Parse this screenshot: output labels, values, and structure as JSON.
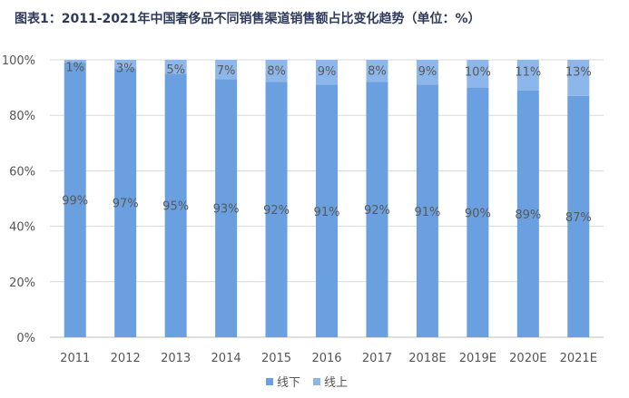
{
  "chart_data": {
    "type": "bar",
    "stacked": true,
    "title": "图表1：2011-2021年中国奢侈品不同销售渠道销售额占比变化趋势（单位：%）",
    "categories": [
      "2011",
      "2012",
      "2013",
      "2014",
      "2015",
      "2016",
      "2017",
      "2018E",
      "2019E",
      "2020E",
      "2021E"
    ],
    "series": [
      {
        "name": "线下",
        "values": [
          99,
          97,
          95,
          93,
          92,
          91,
          92,
          91,
          90,
          89,
          87
        ],
        "color": "#6a9fe0",
        "labels": [
          "99%",
          "97%",
          "95%",
          "93%",
          "92%",
          "91%",
          "92%",
          "91%",
          "90%",
          "89%",
          "87%"
        ]
      },
      {
        "name": "线上",
        "values": [
          1,
          3,
          5,
          7,
          8,
          9,
          8,
          9,
          10,
          11,
          13
        ],
        "color": "#8db7ea",
        "labels": [
          "1%",
          "3%",
          "5%",
          "7%",
          "8%",
          "9%",
          "8%",
          "9%",
          "10%",
          "11%",
          "13%"
        ]
      }
    ],
    "ylim": [
      0,
      100
    ],
    "yticks": [
      0,
      20,
      40,
      60,
      80,
      100
    ],
    "ytick_labels": [
      "0%",
      "20%",
      "40%",
      "60%",
      "80%",
      "100%"
    ],
    "grid": true,
    "legend": "bottom-center"
  }
}
